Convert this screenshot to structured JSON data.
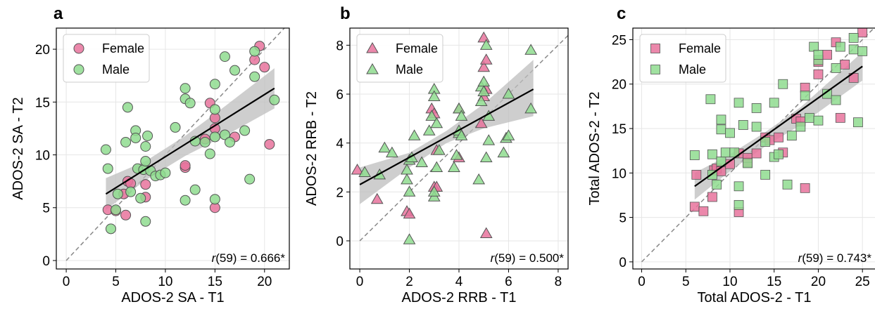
{
  "colors": {
    "female": "#e8739c",
    "male": "#8fdc8f",
    "edge": "#555555",
    "fit": "#000000",
    "ci": "#bdbdbd",
    "identity": "#888888",
    "grid": "#e6e6e6"
  },
  "chart_data": [
    {
      "type": "scatter",
      "panel_letter": "a",
      "marker": "circle",
      "xlabel": "ADOS-2 SA - T1",
      "ylabel": "ADOS-2 SA - T2",
      "xlim": [
        -1,
        22.5
      ],
      "ylim": [
        -0.8,
        22
      ],
      "xticks": [
        0,
        5,
        10,
        15,
        20
      ],
      "yticks": [
        0,
        5,
        10,
        15,
        20
      ],
      "xtick_labels": [
        "0",
        "5",
        "10",
        "15",
        "20"
      ],
      "ytick_labels": [
        "0",
        "5",
        "10",
        "15",
        "20"
      ],
      "grid": true,
      "legend_position": "top-left",
      "legend": [
        "Female",
        "Male"
      ],
      "annotation_r": "r",
      "annotation_rest": "(59) = 0.666*",
      "fit": {
        "x": [
          4,
          21
        ],
        "y": [
          6.3,
          16.3
        ]
      },
      "ci_upper": [
        [
          4,
          7.8
        ],
        [
          8,
          9.4
        ],
        [
          12,
          11.8
        ],
        [
          16,
          14.6
        ],
        [
          21,
          18.2
        ]
      ],
      "ci_lower": [
        [
          4,
          4.8
        ],
        [
          8,
          7.6
        ],
        [
          12,
          9.9
        ],
        [
          16,
          11.8
        ],
        [
          21,
          14.4
        ]
      ],
      "series": [
        {
          "name": "Female",
          "x": [
            4.2,
            5,
            5.8,
            6,
            6.2,
            6.5,
            8,
            8,
            12,
            12,
            14,
            14.5,
            15,
            15,
            15,
            17,
            19,
            19.5,
            20,
            20.5
          ],
          "y": [
            4.8,
            4.7,
            6.3,
            4.3,
            7.5,
            7.3,
            7.2,
            6,
            8.8,
            9,
            11.5,
            14.9,
            12.5,
            13.5,
            5,
            11.7,
            19,
            20.3,
            18.3,
            11
          ]
        },
        {
          "name": "Male",
          "x": [
            4,
            4.2,
            4.5,
            5,
            5.2,
            6,
            6.2,
            6.5,
            7,
            7,
            7.2,
            7.5,
            7.8,
            8,
            8,
            8,
            8.2,
            8.5,
            9,
            9.5,
            10,
            11,
            12,
            12,
            12,
            12.5,
            13,
            13,
            14,
            14.5,
            15,
            15,
            15,
            15,
            16,
            16,
            16.5,
            17,
            18,
            18.5,
            19,
            19,
            21
          ],
          "y": [
            10.5,
            8.7,
            3,
            4.8,
            6.3,
            11.2,
            14.5,
            6.5,
            12.3,
            11.6,
            8.7,
            5.9,
            8.6,
            9.4,
            10.8,
            3.7,
            11.8,
            8.5,
            8,
            8.1,
            8.3,
            12.6,
            16.3,
            15.3,
            5.7,
            14.9,
            11.3,
            6.7,
            11.2,
            10.1,
            5.8,
            16.7,
            14.3,
            11.7,
            11.9,
            19.3,
            11.2,
            18,
            12.3,
            7.7,
            19.8,
            17.4,
            15.2
          ]
        }
      ]
    },
    {
      "type": "scatter",
      "panel_letter": "b",
      "marker": "triangle",
      "xlabel": "ADOS-2 RRB - T1",
      "ylabel": "ADOS-2 RRB - T2",
      "xlim": [
        -0.4,
        8.4
      ],
      "ylim": [
        -1.15,
        8.7
      ],
      "xticks": [
        0,
        2,
        4,
        6,
        8
      ],
      "yticks": [
        0,
        2,
        4,
        6,
        8
      ],
      "xtick_labels": [
        "0",
        "2",
        "4",
        "6",
        "8"
      ],
      "ytick_labels": [
        "0",
        "2",
        "4",
        "6",
        "8"
      ],
      "grid": true,
      "legend_position": "top-left",
      "legend": [
        "Female",
        "Male"
      ],
      "annotation_r": "r",
      "annotation_rest": "(59) = 0.500*",
      "fit": {
        "x": [
          0,
          7
        ],
        "y": [
          2.3,
          6.2
        ]
      },
      "ci_upper": [
        [
          0,
          3.0
        ],
        [
          2,
          3.6
        ],
        [
          3.5,
          4.5
        ],
        [
          5,
          5.6
        ],
        [
          7,
          7.4
        ]
      ],
      "ci_lower": [
        [
          0,
          1.5
        ],
        [
          2,
          3.0
        ],
        [
          3.5,
          4.0
        ],
        [
          5,
          4.6
        ],
        [
          7,
          5.1
        ]
      ],
      "series": [
        {
          "name": "Female",
          "x": [
            -0.1,
            0.7,
            1.9,
            2,
            2.9,
            3,
            3,
            3.1,
            3.1,
            4,
            4,
            4.9,
            5,
            5,
            5,
            5.1,
            5.1,
            5.1
          ],
          "y": [
            2.9,
            1.7,
            1.2,
            1.1,
            5.4,
            5.2,
            2.2,
            2.2,
            3.7,
            5.4,
            3.4,
            4.8,
            5.9,
            8.3,
            7.1,
            7.4,
            6.2,
            0.3
          ]
        },
        {
          "name": "Male",
          "x": [
            0.2,
            0.8,
            1,
            1.3,
            1.9,
            1.9,
            2,
            2,
            2,
            2.1,
            2.2,
            2.5,
            2.8,
            2.9,
            3,
            3,
            3,
            3,
            3.1,
            3.1,
            3.2,
            3.8,
            3.9,
            4,
            4,
            4,
            4.1,
            4.1,
            4.8,
            4.9,
            4.9,
            5,
            5,
            5.1,
            5.1,
            5.2,
            5.2,
            5.8,
            5.9,
            6,
            6,
            6.9,
            6.9
          ],
          "y": [
            2.8,
            2.7,
            3.8,
            3.6,
            2.9,
            2.5,
            3.3,
            2,
            0.05,
            3.4,
            4.3,
            3.2,
            4.5,
            5.1,
            6.2,
            5.9,
            1.8,
            2,
            3,
            4.8,
            3.7,
            3,
            3.5,
            5.4,
            4.4,
            4.5,
            5.1,
            4.3,
            2.5,
            6.3,
            5.7,
            6.5,
            6.1,
            8,
            3.4,
            4.1,
            5.1,
            3.6,
            4.2,
            4.3,
            6,
            7.8,
            5.4
          ]
        }
      ]
    },
    {
      "type": "scatter",
      "panel_letter": "c",
      "marker": "square",
      "xlabel": "Total ADOS-2 - T1",
      "ylabel": "Total ADOS-2 - T2",
      "xlim": [
        -1,
        26.5
      ],
      "ylim": [
        -0.8,
        26.3
      ],
      "xticks": [
        0,
        5,
        10,
        15,
        20,
        25
      ],
      "yticks": [
        0,
        5,
        10,
        15,
        20,
        25
      ],
      "xtick_labels": [
        "0",
        "5",
        "10",
        "15",
        "20",
        "25"
      ],
      "ytick_labels": [
        "0",
        "5",
        "10",
        "15",
        "20",
        "25"
      ],
      "grid": true,
      "legend_position": "top-left",
      "legend": [
        "Female",
        "Male"
      ],
      "annotation_r": "r",
      "annotation_rest": "(59) = 0.743*",
      "fit": {
        "x": [
          6,
          25
        ],
        "y": [
          8.5,
          22
        ]
      },
      "ci_upper": [
        [
          6,
          10.0
        ],
        [
          10,
          12.1
        ],
        [
          14,
          14.6
        ],
        [
          18,
          17.4
        ],
        [
          25,
          23.6
        ]
      ],
      "ci_lower": [
        [
          6,
          7.0
        ],
        [
          10,
          10.2
        ],
        [
          14,
          13.0
        ],
        [
          18,
          15.4
        ],
        [
          25,
          20.4
        ]
      ],
      "series": [
        {
          "name": "Female",
          "x": [
            6,
            6.2,
            7,
            8,
            8.2,
            8.5,
            9,
            10,
            11,
            11,
            12,
            12,
            13,
            14,
            14.5,
            15.5,
            16,
            17.5,
            18,
            18.5,
            18.5,
            20,
            20,
            21,
            22,
            22.5,
            23,
            24,
            25
          ],
          "y": [
            6.2,
            9.8,
            5.7,
            7.3,
            10.3,
            10.5,
            10.2,
            11,
            5.6,
            12.2,
            11.2,
            11.7,
            12.2,
            14,
            13.7,
            14,
            12.3,
            16.1,
            15.8,
            19.6,
            8.3,
            21.1,
            22.5,
            23.3,
            24.7,
            16.2,
            22.2,
            20.7,
            25.8
          ]
        },
        {
          "name": "Male",
          "x": [
            6,
            7.8,
            8,
            8,
            8.5,
            9,
            9,
            9,
            9.5,
            10,
            10.5,
            11,
            11,
            11,
            11.5,
            12,
            13,
            13,
            14,
            14,
            15,
            15,
            15.5,
            16,
            16.5,
            17,
            18,
            18.5,
            19,
            19.5,
            20,
            20,
            20,
            21,
            22,
            22,
            22.5,
            24,
            24,
            24.5,
            25
          ],
          "y": [
            12,
            18.3,
            12.1,
            9.8,
            8.7,
            11.3,
            16,
            14.9,
            12.3,
            14.5,
            12.3,
            17.9,
            8.5,
            6.4,
            15.4,
            11.1,
            15.2,
            17.3,
            13.5,
            9.8,
            11.8,
            17.9,
            12.1,
            20,
            8.7,
            14.2,
            15.2,
            18.7,
            16.2,
            24.2,
            22.7,
            23.3,
            15.9,
            18.9,
            21.8,
            18.2,
            24.2,
            25.2,
            23.9,
            15.7,
            23.7
          ]
        }
      ]
    }
  ]
}
